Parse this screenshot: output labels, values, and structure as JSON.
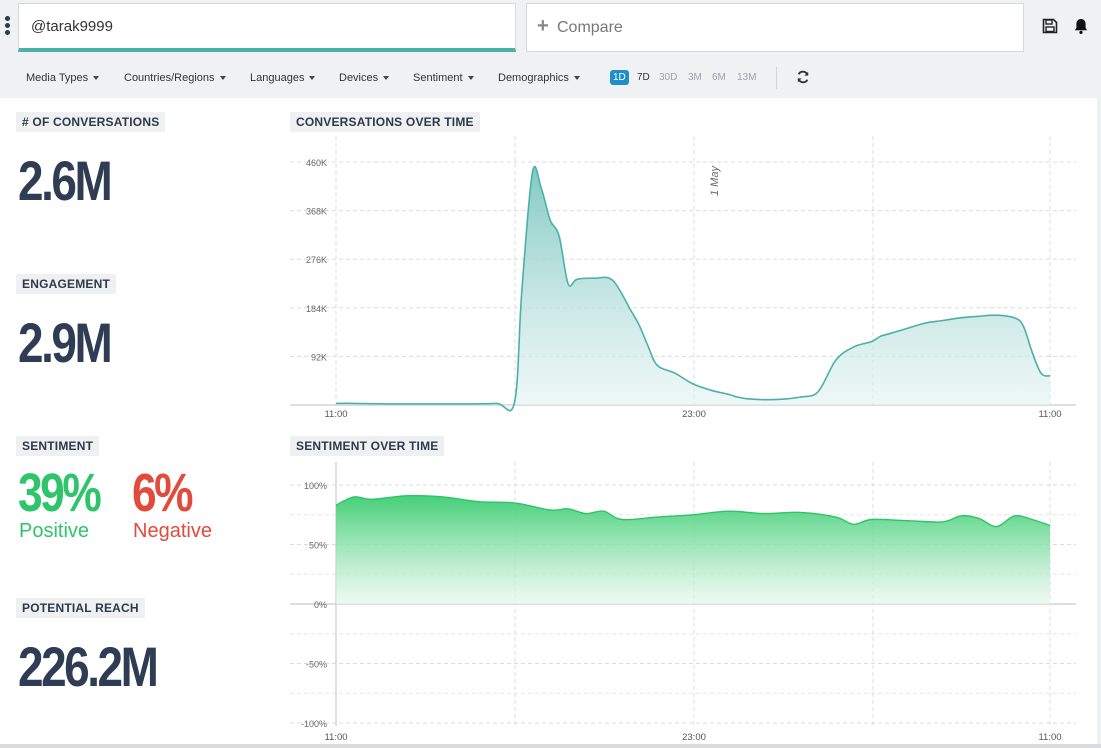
{
  "search": {
    "value": "@tarak9999"
  },
  "compare": {
    "label": "Compare",
    "icon": "plus-icon"
  },
  "header_icons": [
    "save-icon",
    "bell-icon"
  ],
  "filters": [
    {
      "label": "Media Types"
    },
    {
      "label": "Countries/Regions"
    },
    {
      "label": "Languages"
    },
    {
      "label": "Devices"
    },
    {
      "label": "Sentiment"
    },
    {
      "label": "Demographics"
    }
  ],
  "ranges": [
    {
      "label": "1D",
      "active": true
    },
    {
      "label": "7D",
      "active": false
    },
    {
      "label": "30D",
      "active": false
    },
    {
      "label": "3M",
      "active": false
    },
    {
      "label": "6M",
      "active": false
    },
    {
      "label": "13M",
      "active": false
    }
  ],
  "metrics": {
    "conversations": {
      "label": "# OF CONVERSATIONS",
      "value": "2.6M"
    },
    "engagement": {
      "label": "ENGAGEMENT",
      "value": "2.9M"
    },
    "sentiment": {
      "label": "SENTIMENT",
      "positive_value": "39%",
      "positive_label": "Positive",
      "negative_value": "6%",
      "negative_label": "Negative"
    },
    "reach": {
      "label": "POTENTIAL REACH",
      "value": "226.2M"
    }
  },
  "colors": {
    "accent": "#4ab0a8",
    "positive": "#2ec46a",
    "negative": "#e24a3b",
    "active_range": "#1f8fc8",
    "number": "#2f3d54"
  },
  "chart_data": [
    {
      "type": "area",
      "title": "CONVERSATIONS OVER TIME",
      "x_ticks": [
        "11:00",
        "23:00",
        "11:00"
      ],
      "y_ticks": [
        "92K",
        "184K",
        "276K",
        "368K",
        "460K"
      ],
      "ylim": [
        0,
        460
      ],
      "annotation": "1 May",
      "color": "#4ab0a8",
      "x": [
        0,
        0.5,
        1.5,
        2.5,
        3.5,
        4.5,
        5,
        5.2,
        5.5,
        5.75,
        6.0,
        6.25,
        6.5,
        6.75,
        7.25,
        7.75,
        8.25,
        8.5,
        8.75,
        9.0,
        9.5,
        10.0,
        10.5,
        11.0,
        11.25,
        11.5,
        12.0,
        12.5,
        13.0,
        13.5,
        14.0,
        14.5,
        15.0,
        15.25,
        15.5,
        15.75,
        16.0,
        16.5,
        17.0,
        17.5,
        18.0,
        18.5,
        19.0,
        19.25,
        19.5,
        19.75,
        20.0
      ],
      "y": [
        3,
        3,
        2,
        2,
        2,
        3,
        5,
        210,
        440,
        410,
        350,
        320,
        230,
        238,
        240,
        236,
        180,
        150,
        110,
        75,
        60,
        40,
        28,
        20,
        15,
        12,
        10,
        11,
        15,
        25,
        85,
        110,
        120,
        130,
        135,
        140,
        145,
        155,
        160,
        165,
        168,
        170,
        165,
        150,
        100,
        60,
        55
      ]
    },
    {
      "type": "area",
      "title": "SENTIMENT OVER TIME",
      "x_ticks": [
        "11:00",
        "23:00",
        "11:00"
      ],
      "y_ticks": [
        "100%",
        "50%",
        "0%",
        "-50%",
        "-100%"
      ],
      "ylim": [
        -100,
        100
      ],
      "color": "#2ec46a",
      "x": [
        0,
        0.5,
        1,
        2,
        3,
        4,
        5,
        6,
        6.5,
        7,
        7.5,
        8,
        9,
        10,
        11,
        12,
        13,
        14,
        14.5,
        15,
        16,
        17,
        17.5,
        18,
        18.5,
        19,
        19.5,
        20
      ],
      "y": [
        83,
        90,
        88,
        91,
        90,
        86,
        85,
        79,
        80,
        76,
        78,
        71,
        73,
        75,
        78,
        76,
        77,
        73,
        67,
        71,
        70,
        69,
        74,
        72,
        65,
        74,
        71,
        66
      ]
    }
  ]
}
